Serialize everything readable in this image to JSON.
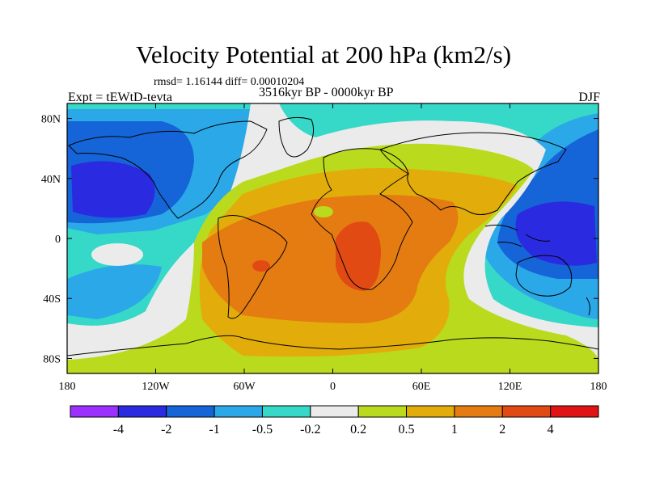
{
  "chart_data": {
    "type": "heatmap",
    "title": "Velocity Potential at 200 hPa (km2/s)",
    "stats_text": "rmsd= 1.16144  diff= 0.00010204",
    "experiment_label": "Expt = tEWtD-tevta",
    "period_label": "3516kyr BP - 0000kyr BP",
    "season_label": "DJF",
    "x_axis": {
      "range": [
        -180,
        180
      ],
      "tick_labels": [
        "180",
        "120W",
        "60W",
        "0",
        "60E",
        "120E",
        "180"
      ],
      "tick_values": [
        -180,
        -120,
        -60,
        0,
        60,
        120,
        180
      ]
    },
    "y_axis": {
      "range": [
        -90,
        90
      ],
      "tick_labels": [
        "80N",
        "40N",
        "0",
        "40S",
        "80S"
      ],
      "tick_values": [
        80,
        40,
        0,
        -40,
        -80
      ]
    },
    "colorbar": {
      "boundaries": [
        -4,
        -2,
        -1,
        -0.5,
        -0.2,
        0.2,
        0.5,
        1,
        2,
        4
      ],
      "labels": [
        "-4",
        "-2",
        "-1",
        "-0.5",
        "-0.2",
        "0.2",
        "0.5",
        "1",
        "2",
        "4"
      ],
      "colors": [
        "#9b30ff",
        "#2a2ae0",
        "#1565d8",
        "#2ba8e8",
        "#36d8c8",
        "#ebebeb",
        "#bada1e",
        "#e2ad0a",
        "#e47c12",
        "#e24a14",
        "#e01414"
      ]
    },
    "field_features": [
      {
        "name": "positive-max-central-africa",
        "lon": 15,
        "lat": -15,
        "level": "2 to 4"
      },
      {
        "name": "positive-max-south-america",
        "lon": -52,
        "lat": -18,
        "level": "2 to 4"
      },
      {
        "name": "negative-min-maritime-continent",
        "lon": 140,
        "lat": 5,
        "level": "-4 to -2"
      },
      {
        "name": "negative-min-north-pacific",
        "lon": -155,
        "lat": 35,
        "level": "-4 to -2"
      }
    ]
  }
}
